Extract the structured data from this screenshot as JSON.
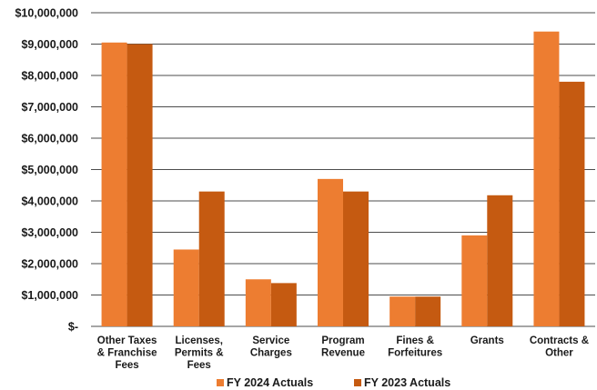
{
  "chart_data": {
    "type": "bar",
    "title": "",
    "xlabel": "",
    "ylabel": "",
    "ylim": [
      0,
      10000000
    ],
    "yticks": [
      0,
      1000000,
      2000000,
      3000000,
      4000000,
      5000000,
      6000000,
      7000000,
      8000000,
      9000000,
      10000000
    ],
    "ytick_labels": [
      "$-",
      "$1,000,000",
      "$2,000,000",
      "$3,000,000",
      "$4,000,000",
      "$5,000,000",
      "$6,000,000",
      "$7,000,000",
      "$8,000,000",
      "$9,000,000",
      "$10,000,000"
    ],
    "categories": [
      [
        "Other Taxes",
        "& Franchise",
        "Fees"
      ],
      [
        "Licenses,",
        "Permits &",
        "Fees"
      ],
      [
        "Service",
        "Charges"
      ],
      [
        "Program",
        "Revenue"
      ],
      [
        "Fines &",
        "Forfeitures"
      ],
      [
        "Grants"
      ],
      [
        "Contracts &",
        "Other"
      ]
    ],
    "series": [
      {
        "name": "FY 2024 Actuals",
        "color": "#ed7d31",
        "values": [
          9050000,
          2450000,
          1500000,
          4700000,
          950000,
          2900000,
          9400000
        ]
      },
      {
        "name": "FY 2023 Actuals",
        "color": "#c55a11",
        "values": [
          9000000,
          4300000,
          1380000,
          4300000,
          950000,
          4180000,
          7800000
        ]
      }
    ],
    "grid": true,
    "legend_position": "bottom"
  }
}
